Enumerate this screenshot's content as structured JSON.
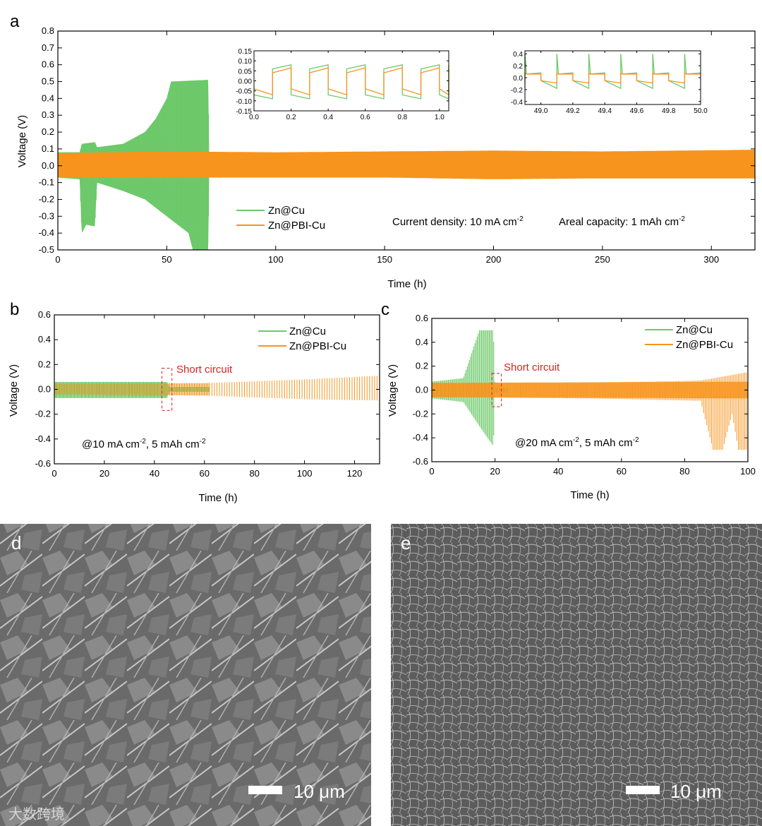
{
  "colors": {
    "green": "#6dc96a",
    "orange": "#f7941d",
    "annotation": "#e02020",
    "axis": "#000000"
  },
  "panels": {
    "a": "a",
    "b": "b",
    "c": "c",
    "d": "d",
    "e": "e"
  },
  "watermark": "大数跨境",
  "chart_data": [
    {
      "id": "a",
      "type": "line",
      "xlabel": "Time (h)",
      "ylabel": "Voltage (V)",
      "xlim": [
        0,
        320
      ],
      "ylim": [
        -0.5,
        0.8
      ],
      "xticks": [
        0,
        50,
        100,
        150,
        200,
        250,
        300
      ],
      "yticks": [
        -0.5,
        -0.4,
        -0.3,
        -0.2,
        -0.1,
        0.0,
        0.1,
        0.2,
        0.3,
        0.4,
        0.5,
        0.6,
        0.7,
        0.8
      ],
      "ytick_labels": [
        "-0.5",
        "-0.4",
        "-0.3",
        "-0.2",
        "-0.1",
        "0.0",
        "0.1",
        "0.2",
        "0.3",
        "0.4",
        "0.5",
        "0.6",
        "0.7",
        "0.8"
      ],
      "legend": {
        "placement": "bottom-left",
        "entries": [
          "Zn@Cu",
          "Zn@PBI-Cu"
        ]
      },
      "annotations": {
        "current": "Current density: 10 mA cm",
        "current_sup": "-2",
        "areal": "Areal capacity: 1 mAh cm",
        "areal_sup": "-2"
      },
      "series": [
        {
          "name": "Zn@Cu",
          "color": "#6dc96a",
          "envelope_upper": [
            [
              0,
              0.08
            ],
            [
              10,
              0.08
            ],
            [
              11,
              0.13
            ],
            [
              17,
              0.14
            ],
            [
              18,
              0.11
            ],
            [
              30,
              0.13
            ],
            [
              40,
              0.2
            ],
            [
              45,
              0.28
            ],
            [
              50,
              0.4
            ],
            [
              52,
              0.5
            ],
            [
              69,
              0.51
            ],
            [
              69.5,
              0.0
            ]
          ],
          "envelope_lower": [
            [
              0,
              -0.07
            ],
            [
              10,
              -0.08
            ],
            [
              11,
              -0.4
            ],
            [
              13,
              -0.35
            ],
            [
              17,
              -0.36
            ],
            [
              18,
              -0.1
            ],
            [
              30,
              -0.15
            ],
            [
              40,
              -0.2
            ],
            [
              50,
              -0.3
            ],
            [
              60,
              -0.4
            ],
            [
              62,
              -0.5
            ],
            [
              69,
              -0.5
            ],
            [
              69.5,
              0.0
            ]
          ]
        },
        {
          "name": "Zn@PBI-Cu",
          "color": "#f7941d",
          "envelope_upper": [
            [
              0,
              0.075
            ],
            [
              50,
              0.085
            ],
            [
              100,
              0.08
            ],
            [
              150,
              0.085
            ],
            [
              200,
              0.09
            ],
            [
              250,
              0.085
            ],
            [
              320,
              0.095
            ]
          ],
          "envelope_lower": [
            [
              0,
              -0.07
            ],
            [
              50,
              -0.07
            ],
            [
              100,
              -0.07
            ],
            [
              150,
              -0.07
            ],
            [
              200,
              -0.08
            ],
            [
              250,
              -0.075
            ],
            [
              320,
              -0.075
            ]
          ]
        }
      ],
      "insets": [
        {
          "id": "a-inset-1",
          "xlim": [
            0.0,
            1.05
          ],
          "ylim": [
            -0.15,
            0.15
          ],
          "xticks": [
            0.0,
            0.2,
            0.4,
            0.6,
            0.8,
            1.0
          ],
          "xtick_labels": [
            "0.0",
            "0.2",
            "0.4",
            "0.6",
            "0.8",
            "1.0"
          ],
          "yticks": [
            -0.15,
            -0.1,
            -0.05,
            0.0,
            0.05,
            0.1,
            0.15
          ],
          "ytick_labels": [
            "-0.15",
            "-0.10",
            "-0.05",
            "0.00",
            "0.05",
            "0.10",
            "0.15"
          ],
          "period": 0.2,
          "series": [
            {
              "name": "Zn@Cu",
              "plating": -0.07,
              "plating_end": -0.09,
              "stripping": 0.06,
              "stripping_end": 0.08
            },
            {
              "name": "Zn@PBI-Cu",
              "plating": -0.04,
              "plating_end": -0.07,
              "stripping": 0.04,
              "stripping_end": 0.065
            }
          ]
        },
        {
          "id": "a-inset-2",
          "xlim": [
            48.9,
            50.0
          ],
          "ylim": [
            -0.45,
            0.45
          ],
          "xticks": [
            49.0,
            49.2,
            49.4,
            49.6,
            49.8,
            50.0
          ],
          "xtick_labels": [
            "49.0",
            "49.2",
            "49.4",
            "49.6",
            "49.8",
            "50.0"
          ],
          "yticks": [
            -0.4,
            -0.2,
            0.0,
            0.2,
            0.4
          ],
          "ytick_labels": [
            "-0.4",
            "-0.2",
            "0.0",
            "0.2",
            "0.4"
          ],
          "period": 0.2,
          "series": [
            {
              "name": "Zn@Cu",
              "plating": -0.05,
              "plating_end": -0.18,
              "stripping": 0.06,
              "stripping_end": 0.08,
              "spike": 0.4
            },
            {
              "name": "Zn@PBI-Cu",
              "plating": -0.05,
              "plating_end": -0.09,
              "stripping": 0.06,
              "stripping_end": 0.06,
              "spike": 0.08
            }
          ]
        }
      ]
    },
    {
      "id": "b",
      "type": "line",
      "xlabel": "Time (h)",
      "ylabel": "Voltage (V)",
      "xlim": [
        0,
        130
      ],
      "ylim": [
        -0.6,
        0.6
      ],
      "xticks": [
        0,
        20,
        40,
        60,
        80,
        100,
        120
      ],
      "yticks": [
        -0.6,
        -0.4,
        -0.2,
        0.0,
        0.2,
        0.4,
        0.6
      ],
      "ytick_labels": [
        "-0.6",
        "-0.4",
        "-0.2",
        "0.0",
        "0.2",
        "0.4",
        "0.6"
      ],
      "legend": {
        "placement": "top-right",
        "entries": [
          "Zn@Cu",
          "Zn@PBI-Cu"
        ]
      },
      "annotation_short": "Short circuit",
      "short_box": [
        43,
        47,
        -0.17,
        0.17
      ],
      "condition": "@10 mA cm",
      "condition_sup": "-2",
      "condition_rest": ", 5 mAh cm",
      "condition_sup2": "-2",
      "series": [
        {
          "name": "Zn@Cu",
          "color": "#6dc96a",
          "end": 62,
          "envelope_upper": [
            [
              0,
              0.06
            ],
            [
              45,
              0.06
            ],
            [
              46,
              0.02
            ],
            [
              62,
              0.02
            ]
          ],
          "envelope_lower": [
            [
              0,
              -0.07
            ],
            [
              45,
              -0.07
            ],
            [
              46,
              -0.02
            ],
            [
              62,
              -0.02
            ]
          ]
        },
        {
          "name": "Zn@PBI-Cu",
          "color": "#f7941d",
          "end": 130,
          "period": 1.0,
          "envelope_upper": [
            [
              0,
              0.045
            ],
            [
              60,
              0.05
            ],
            [
              100,
              0.08
            ],
            [
              130,
              0.11
            ]
          ],
          "envelope_lower": [
            [
              0,
              -0.04
            ],
            [
              60,
              -0.05
            ],
            [
              100,
              -0.08
            ],
            [
              130,
              -0.09
            ]
          ]
        }
      ]
    },
    {
      "id": "c",
      "type": "line",
      "xlabel": "Time (h)",
      "ylabel": "Voltage (V)",
      "xlim": [
        0,
        100
      ],
      "ylim": [
        -0.6,
        0.6
      ],
      "xticks": [
        0,
        20,
        40,
        60,
        80,
        100
      ],
      "yticks": [
        -0.6,
        -0.4,
        -0.2,
        0.0,
        0.2,
        0.4,
        0.6
      ],
      "ytick_labels": [
        "-0.6",
        "-0.4",
        "-0.2",
        "0.0",
        "0.2",
        "0.4",
        "0.6"
      ],
      "legend": {
        "placement": "top-right",
        "entries": [
          "Zn@Cu",
          "Zn@PBI-Cu"
        ]
      },
      "annotation_short": "Short circuit",
      "short_box": [
        19,
        22,
        -0.14,
        0.14
      ],
      "condition": "@20 mA cm",
      "condition_sup": "-2",
      "condition_rest": ", 5 mAh cm",
      "condition_sup2": "-2",
      "series": [
        {
          "name": "Zn@Cu",
          "color": "#6dc96a",
          "end": 24,
          "envelope_upper": [
            [
              0,
              0.07
            ],
            [
              10,
              0.1
            ],
            [
              15,
              0.5
            ],
            [
              19.5,
              0.5
            ],
            [
              20,
              0.02
            ],
            [
              24,
              0.02
            ]
          ],
          "envelope_lower": [
            [
              0,
              -0.07
            ],
            [
              10,
              -0.1
            ],
            [
              15,
              -0.3
            ],
            [
              19.5,
              -0.47
            ],
            [
              20,
              -0.02
            ],
            [
              24,
              -0.02
            ]
          ]
        },
        {
          "name": "Zn@PBI-Cu",
          "color": "#f7941d",
          "end": 100,
          "envelope_upper": [
            [
              0,
              0.06
            ],
            [
              50,
              0.06
            ],
            [
              85,
              0.08
            ],
            [
              100,
              0.15
            ]
          ],
          "envelope_lower": [
            [
              0,
              -0.06
            ],
            [
              50,
              -0.07
            ],
            [
              85,
              -0.09
            ],
            [
              89,
              -0.5
            ],
            [
              92,
              -0.5
            ],
            [
              95,
              -0.2
            ],
            [
              97,
              -0.5
            ],
            [
              100,
              -0.5
            ]
          ]
        }
      ]
    }
  ],
  "sem": [
    {
      "id": "d",
      "scale": "10 μm"
    },
    {
      "id": "e",
      "scale": "10 μm"
    }
  ]
}
